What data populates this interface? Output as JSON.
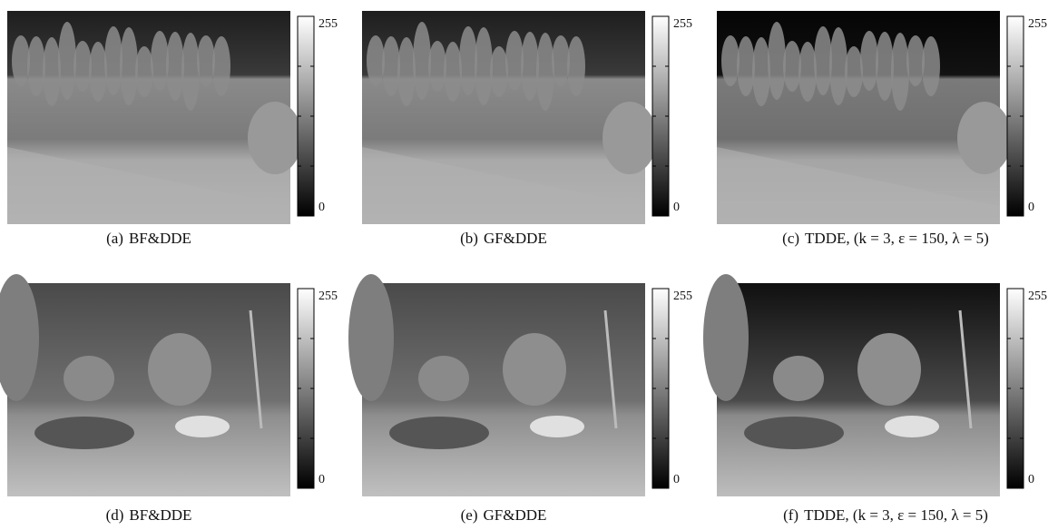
{
  "panels": [
    {
      "label": "(a)",
      "method": "BF&DDE",
      "colorbar": {
        "max": 255,
        "min": 0
      }
    },
    {
      "label": "(b)",
      "method": "GF&DDE",
      "colorbar": {
        "max": 255,
        "min": 0
      }
    },
    {
      "label": "(c)",
      "method": "TDDE, (k = 3, ε = 150, λ = 5)",
      "colorbar": {
        "max": 255,
        "min": 0
      }
    },
    {
      "label": "(d)",
      "method": "BF&DDE",
      "colorbar": {
        "max": 255,
        "min": 0
      }
    },
    {
      "label": "(e)",
      "method": "GF&DDE",
      "colorbar": {
        "max": 255,
        "min": 0
      }
    },
    {
      "label": "(f)",
      "method": "TDDE, (k = 3, ε = 150, λ = 5)",
      "colorbar": {
        "max": 255,
        "min": 0
      }
    }
  ]
}
